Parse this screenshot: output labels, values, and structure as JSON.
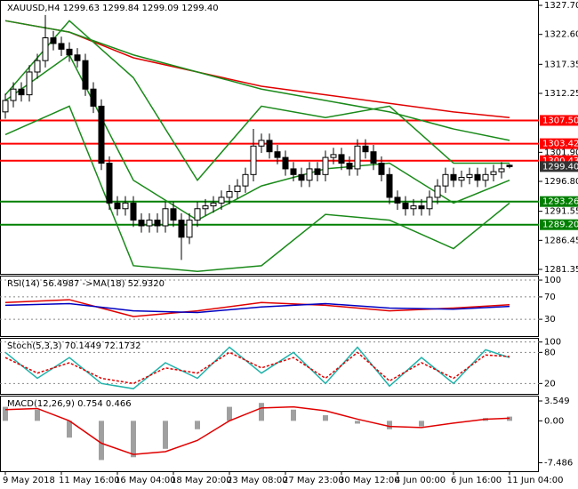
{
  "chart_data": [
    {
      "type": "candlestick",
      "title": "XAUUSD,H4 1299.63 1299.84 1299.09 1299.40",
      "categories": [
        "9 May 2018",
        null,
        null,
        null,
        null,
        null,
        null,
        "11 May 16:00",
        null,
        null,
        null,
        null,
        null,
        null,
        "16 May 04:00",
        null,
        null,
        null,
        null,
        null,
        null,
        "18 May 20:00",
        null,
        null,
        null,
        null,
        null,
        null,
        "23 May 08:00",
        null,
        null,
        null,
        null,
        null,
        null,
        "27 May 23:00",
        null,
        null,
        null,
        null,
        null,
        null,
        "30 May 12:00",
        null,
        null,
        null,
        null,
        null,
        null,
        "4 Jun 00:00",
        null,
        null,
        null,
        null,
        null,
        null,
        "6 Jun 16:00",
        null,
        null,
        null,
        null,
        null,
        null,
        "11 Jun 04:00"
      ],
      "open": [
        1309,
        1311,
        1313,
        1312,
        1316,
        1318,
        1322,
        1321,
        1320,
        1319,
        1318,
        1313,
        1310,
        1300,
        1293,
        1292,
        1293,
        1290,
        1289,
        1290,
        1289,
        1292,
        1290,
        1287,
        1290,
        1292,
        1292.5,
        1293,
        1294,
        1295,
        1296,
        1298,
        1303,
        1304,
        1302,
        1301,
        1299,
        1298,
        1297,
        1299,
        1298,
        1301,
        1301.5,
        1300,
        1299,
        1303,
        1302,
        1300,
        1298,
        1294,
        1293,
        1292,
        1292.5,
        1292,
        1294,
        1296,
        1298,
        1297,
        1297.5,
        1298,
        1297,
        1298,
        1298.5,
        1299.63
      ],
      "high": [
        1312.2,
        1314.2,
        1314.2,
        1317.2,
        1319.2,
        1326,
        1323.2,
        1322.2,
        1321.2,
        1320.2,
        1319.2,
        1314.2,
        1311.2,
        1301.2,
        1294.2,
        1294.2,
        1294.2,
        1291.2,
        1291.2,
        1291.2,
        1293.2,
        1293.2,
        1291.2,
        1291.2,
        1293.2,
        1293.7,
        1294.2,
        1295.2,
        1296.2,
        1297.2,
        1299.2,
        1306,
        1305.2,
        1305.2,
        1303.2,
        1302.2,
        1300.2,
        1299.2,
        1300.2,
        1300.2,
        1302.2,
        1302.7,
        1302.7,
        1301.2,
        1304.2,
        1304.2,
        1303.2,
        1301.2,
        1299.2,
        1295.2,
        1294.2,
        1293.7,
        1293.7,
        1295.2,
        1297.2,
        1299.2,
        1299.2,
        1298.7,
        1299.2,
        1299.2,
        1299.2,
        1299.7,
        1300.2,
        1299.84
      ],
      "low": [
        1307.8,
        1309.8,
        1310.8,
        1310.8,
        1314.8,
        1316.8,
        1319.8,
        1318.8,
        1317.8,
        1316.8,
        1311.8,
        1308.8,
        1298.8,
        1291.8,
        1290.8,
        1290.8,
        1288.8,
        1287.8,
        1287.8,
        1287.8,
        1287.8,
        1288.8,
        1283,
        1285.8,
        1288.8,
        1290.8,
        1291.3,
        1291.8,
        1292.8,
        1293.8,
        1294.8,
        1296.8,
        1301.8,
        1300.8,
        1299.8,
        1297.8,
        1296.8,
        1295.8,
        1295.8,
        1296.8,
        1296.8,
        1299.8,
        1298.8,
        1297.8,
        1297.8,
        1300.8,
        1298.8,
        1296.8,
        1292.8,
        1291.8,
        1290.8,
        1290.8,
        1290.8,
        1290.8,
        1292.8,
        1294.8,
        1295.8,
        1295.8,
        1296.3,
        1295.8,
        1295.8,
        1296.8,
        1297.3,
        1299.09
      ],
      "close": [
        1311,
        1313,
        1312,
        1316,
        1318,
        1322,
        1321,
        1320,
        1319,
        1318,
        1313,
        1310,
        1300,
        1293,
        1292,
        1293,
        1290,
        1289,
        1290,
        1289,
        1292,
        1290,
        1287,
        1290,
        1292,
        1292.5,
        1293,
        1294,
        1295,
        1296,
        1298,
        1303,
        1304,
        1302,
        1301,
        1299,
        1298,
        1297,
        1299,
        1298,
        1301,
        1301.5,
        1300,
        1299,
        1303,
        1302,
        1300,
        1298,
        1294,
        1293,
        1292,
        1292.5,
        1292,
        1294,
        1296,
        1298,
        1297,
        1297.5,
        1298,
        1297,
        1298,
        1298.5,
        1299,
        1299.4
      ],
      "up_color": "#ffffff",
      "down_color": "#000000",
      "x": [
        0,
        8,
        16,
        24,
        32,
        40,
        48,
        56,
        63
      ],
      "series": [
        {
          "color": "#e00000",
          "values": [
            1325,
            1323,
            1318.5,
            1316,
            1313.5,
            1312,
            1310.5,
            1309,
            1308
          ]
        },
        {
          "color": "#1a8a1a",
          "values": [
            1325,
            1323,
            1319,
            1316,
            1313,
            1311,
            1309,
            1306,
            1304
          ]
        },
        {
          "color": "#1a8a1a",
          "values": [
            1312,
            1325,
            1315,
            1297,
            1310,
            1308,
            1310,
            1300,
            1300
          ]
        },
        {
          "color": "#1a8a1a",
          "values": [
            1305,
            1310,
            1282,
            1281,
            1282,
            1291,
            1290,
            1285,
            1293
          ]
        },
        {
          "color": "#1a8a1a",
          "values": [
            1311,
            1319,
            1297,
            1290,
            1296,
            1299,
            1300,
            1293,
            1297
          ]
        }
      ],
      "levels": [
        {
          "value": 1307.5,
          "label": "1307.50"
        },
        {
          "value": 1303.42,
          "label": "1303.42"
        },
        {
          "value": 1300.43,
          "label": "1300.43"
        },
        {
          "value": 1293.26,
          "label": "1293.26"
        },
        {
          "value": 1289.2,
          "label": "1289.20"
        }
      ],
      "level_colors": [
        "#ff0000",
        "#ff0000",
        "#ff0000",
        "#008000",
        "#008000"
      ],
      "last": {
        "value": 1299.4,
        "label": "1299.40"
      },
      "ylim": [
        1280.57,
        1328.64
      ],
      "yticks": [
        {
          "value": 1327.7,
          "label": "1327.70"
        },
        {
          "value": 1322.6,
          "label": "1322.60"
        },
        1317.35,
        1312.25,
        {
          "value": 1301.9,
          "label": "1301.90"
        },
        {
          "value": 1296.8,
          "label": "1296.80"
        },
        1291.55,
        1286.45,
        1281.35
      ]
    },
    {
      "type": "line",
      "title": "RSI(14) 56.4987 ->MA(18) 52.9320",
      "x": [
        0,
        8,
        16,
        24,
        32,
        40,
        48,
        56,
        63
      ],
      "series": [
        {
          "color": "#e00000",
          "values": [
            60,
            65,
            35,
            45,
            60,
            55,
            45,
            50,
            56
          ]
        },
        {
          "color": "#0000c0",
          "values": [
            55,
            58,
            45,
            42,
            52,
            58,
            50,
            48,
            53
          ]
        }
      ],
      "ylim": [
        0,
        108
      ],
      "yticks": [
        100,
        70,
        30
      ]
    },
    {
      "type": "line",
      "title": "Stoch(5,3,3) 70.1449 72.1732",
      "x": [
        0,
        4,
        8,
        12,
        16,
        20,
        24,
        28,
        32,
        36,
        40,
        44,
        48,
        52,
        56,
        60,
        63
      ],
      "series": [
        {
          "color": "#20b2aa",
          "values": [
            80,
            30,
            70,
            20,
            10,
            60,
            30,
            90,
            40,
            80,
            20,
            90,
            15,
            70,
            20,
            85,
            70
          ]
        },
        {
          "color": "#e00000",
          "dash": "3,2",
          "values": [
            70,
            40,
            60,
            30,
            20,
            50,
            40,
            80,
            50,
            70,
            30,
            80,
            25,
            60,
            30,
            75,
            72
          ]
        }
      ],
      "ylim": [
        0,
        108
      ],
      "yticks": [
        100,
        80,
        20
      ]
    },
    {
      "type": "macd",
      "title": "MACD(12,26,9) 0.754 0.466",
      "x": [
        0,
        4,
        8,
        12,
        16,
        20,
        24,
        28,
        32,
        36,
        40,
        44,
        48,
        52,
        56,
        60,
        63
      ],
      "values": [
        2.5,
        2,
        -3,
        -7,
        -6.5,
        -5,
        -1.5,
        2.5,
        3.2,
        2,
        1,
        -0.5,
        -1.5,
        -1,
        0,
        0.5,
        0.754
      ],
      "color": "#a0a0a0",
      "series": [
        {
          "color": "#e00000",
          "values": [
            2,
            2.2,
            0,
            -4,
            -6,
            -5.5,
            -3.5,
            0,
            2.3,
            2.5,
            1.8,
            0.3,
            -1,
            -1.2,
            -0.4,
            0.3,
            0.466
          ]
        }
      ],
      "ylim": [
        -9,
        4.5
      ],
      "yticks": [
        3.549,
        {
          "value": 0,
          "label": "0.00"
        },
        -7.486
      ]
    }
  ]
}
